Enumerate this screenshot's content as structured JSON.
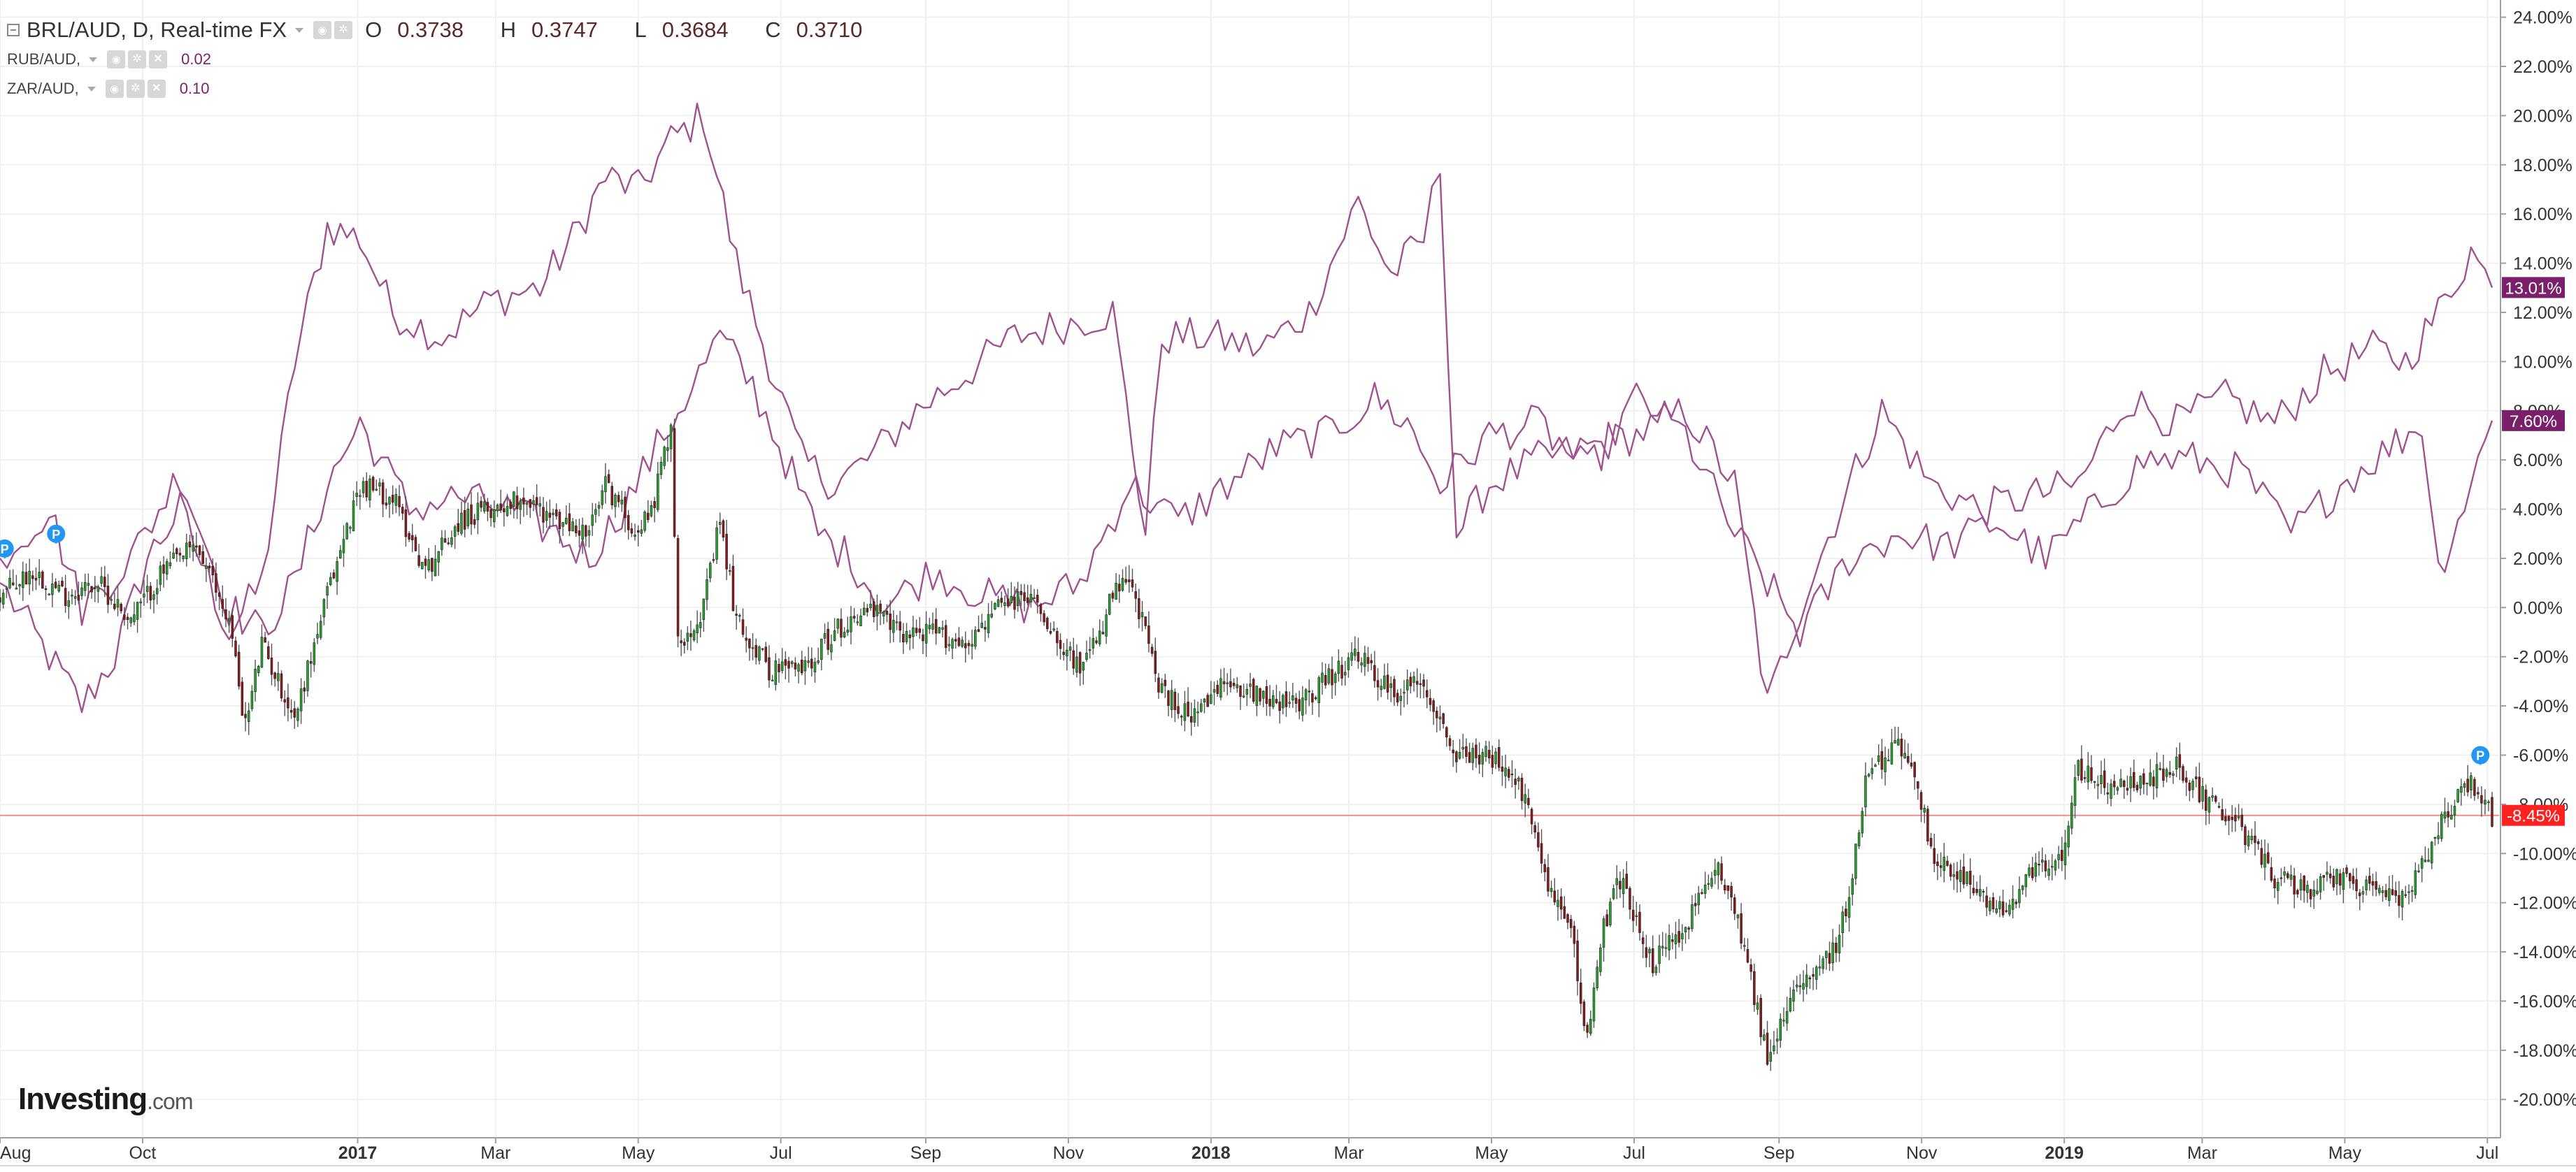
{
  "legend": {
    "main": {
      "symbol": "BRL/AUD, D, Real-time FX",
      "open_label": "O",
      "open": "0.3738",
      "high_label": "H",
      "high": "0.3747",
      "low_label": "L",
      "low": "0.3684",
      "close_label": "C",
      "close": "0.3710"
    },
    "series": [
      {
        "symbol": "RUB/AUD,",
        "value": "0.02"
      },
      {
        "symbol": "ZAR/AUD,",
        "value": "0.10"
      }
    ]
  },
  "logo": {
    "brand": "Investing",
    "domain": ".com"
  },
  "colors": {
    "up_candle": "#26a32e",
    "down_candle": "#8b1a1a",
    "compare_line": "#a0528f",
    "current_line": "#f28b8b",
    "badge_red": "#ff2020",
    "badge_purple": "#7a1f6a",
    "marker_blue": "#2196f3"
  },
  "price_badges": {
    "brl": "-8.45%",
    "rub": "13.01%",
    "zar": "7.60%"
  },
  "markers": [
    {
      "label": "P",
      "date": "2016-08-03",
      "value": 2.0
    },
    {
      "label": "P",
      "date": "2016-08-25",
      "value": 2.6
    },
    {
      "label": "P",
      "date": "2019-06-28",
      "value": -6.4
    }
  ],
  "chart_data": {
    "type": "line",
    "y_unit": "%",
    "ylim": [
      -21.5,
      24.7
    ],
    "xlim": [
      "2016-08-01",
      "2019-07-06"
    ],
    "grid": true,
    "y_ticks": [
      "24.00%",
      "22.00%",
      "20.00%",
      "18.00%",
      "16.00%",
      "14.00%",
      "12.00%",
      "10.00%",
      "8.00%",
      "6.00%",
      "4.00%",
      "2.00%",
      "0.00%",
      "-2.00%",
      "-4.00%",
      "-6.00%",
      "-8.00%",
      "-10.00%",
      "-12.00%",
      "-14.00%",
      "-16.00%",
      "-18.00%",
      "-20.00%"
    ],
    "y_tick_values": [
      24,
      22,
      20,
      18,
      16,
      14,
      12,
      10,
      8,
      6,
      4,
      2,
      0,
      -2,
      -4,
      -6,
      -8,
      -10,
      -12,
      -14,
      -16,
      -18,
      -20
    ],
    "x_ticks": [
      {
        "date": "2016-08-01",
        "label": "Aug",
        "bold": false
      },
      {
        "date": "2016-10-01",
        "label": "Oct",
        "bold": false
      },
      {
        "date": "2017-01-01",
        "label": "2017",
        "bold": true
      },
      {
        "date": "2017-03-01",
        "label": "Mar",
        "bold": false
      },
      {
        "date": "2017-05-01",
        "label": "May",
        "bold": false
      },
      {
        "date": "2017-07-01",
        "label": "Jul",
        "bold": false
      },
      {
        "date": "2017-09-01",
        "label": "Sep",
        "bold": false
      },
      {
        "date": "2017-11-01",
        "label": "Nov",
        "bold": false
      },
      {
        "date": "2018-01-01",
        "label": "2018",
        "bold": true
      },
      {
        "date": "2018-03-01",
        "label": "Mar",
        "bold": false
      },
      {
        "date": "2018-05-01",
        "label": "May",
        "bold": false
      },
      {
        "date": "2018-07-01",
        "label": "Jul",
        "bold": false
      },
      {
        "date": "2018-09-01",
        "label": "Sep",
        "bold": false
      },
      {
        "date": "2018-11-01",
        "label": "Nov",
        "bold": false
      },
      {
        "date": "2019-01-01",
        "label": "2019",
        "bold": true
      },
      {
        "date": "2019-03-01",
        "label": "Mar",
        "bold": false
      },
      {
        "date": "2019-05-01",
        "label": "May",
        "bold": false
      },
      {
        "date": "2019-07-01",
        "label": "Jul",
        "bold": false
      }
    ],
    "current_value": -8.45,
    "series": [
      {
        "name": "BRL/AUD",
        "style": "candlestick",
        "points": [
          [
            "2016-08-01",
            0.5
          ],
          [
            "2016-08-15",
            1.5
          ],
          [
            "2016-08-29",
            0.5
          ],
          [
            "2016-09-12",
            1.0
          ],
          [
            "2016-09-26",
            -0.5
          ],
          [
            "2016-10-10",
            1.5
          ],
          [
            "2016-10-24",
            2.5
          ],
          [
            "2016-11-07",
            -0.5
          ],
          [
            "2016-11-14",
            -4.8
          ],
          [
            "2016-11-21",
            -1.5
          ],
          [
            "2016-12-05",
            -4.5
          ],
          [
            "2016-12-19",
            0.5
          ],
          [
            "2017-01-02",
            5.0
          ],
          [
            "2017-01-16",
            4.5
          ],
          [
            "2017-01-30",
            1.5
          ],
          [
            "2017-02-13",
            3.5
          ],
          [
            "2017-02-27",
            4.0
          ],
          [
            "2017-03-13",
            4.5
          ],
          [
            "2017-03-27",
            3.5
          ],
          [
            "2017-04-10",
            3.0
          ],
          [
            "2017-04-17",
            5.0
          ],
          [
            "2017-05-01",
            3.0
          ],
          [
            "2017-05-08",
            4.5
          ],
          [
            "2017-05-15",
            7.5
          ],
          [
            "2017-05-18",
            -1.5
          ],
          [
            "2017-05-29",
            0.0
          ],
          [
            "2017-06-05",
            3.5
          ],
          [
            "2017-06-12",
            -0.5
          ],
          [
            "2017-06-26",
            -2.5
          ],
          [
            "2017-07-10",
            -2.5
          ],
          [
            "2017-07-24",
            -1.0
          ],
          [
            "2017-08-07",
            0.0
          ],
          [
            "2017-08-21",
            -1.0
          ],
          [
            "2017-09-04",
            -1.0
          ],
          [
            "2017-09-18",
            -1.5
          ],
          [
            "2017-10-02",
            0.0
          ],
          [
            "2017-10-16",
            0.5
          ],
          [
            "2017-10-30",
            -1.5
          ],
          [
            "2017-11-06",
            -2.5
          ],
          [
            "2017-11-13",
            -1.5
          ],
          [
            "2017-11-20",
            0.5
          ],
          [
            "2017-11-27",
            1.0
          ],
          [
            "2017-12-04",
            -1.0
          ],
          [
            "2017-12-11",
            -3.5
          ],
          [
            "2017-12-25",
            -4.5
          ],
          [
            "2018-01-08",
            -3.0
          ],
          [
            "2018-01-22",
            -3.5
          ],
          [
            "2018-02-05",
            -4.0
          ],
          [
            "2018-02-19",
            -3.0
          ],
          [
            "2018-03-05",
            -2.0
          ],
          [
            "2018-03-19",
            -3.5
          ],
          [
            "2018-04-02",
            -3.0
          ],
          [
            "2018-04-16",
            -6.0
          ],
          [
            "2018-04-30",
            -6.0
          ],
          [
            "2018-05-14",
            -7.5
          ],
          [
            "2018-05-28",
            -12.0
          ],
          [
            "2018-06-04",
            -13.0
          ],
          [
            "2018-06-11",
            -17.5
          ],
          [
            "2018-06-18",
            -13.0
          ],
          [
            "2018-06-25",
            -11.0
          ],
          [
            "2018-07-09",
            -14.5
          ],
          [
            "2018-07-23",
            -13.0
          ],
          [
            "2018-08-06",
            -10.5
          ],
          [
            "2018-08-13",
            -12.0
          ],
          [
            "2018-08-20",
            -15.0
          ],
          [
            "2018-08-27",
            -18.5
          ],
          [
            "2018-09-10",
            -15.0
          ],
          [
            "2018-09-24",
            -14.0
          ],
          [
            "2018-10-01",
            -12.0
          ],
          [
            "2018-10-08",
            -7.0
          ],
          [
            "2018-10-22",
            -5.5
          ],
          [
            "2018-10-29",
            -6.5
          ],
          [
            "2018-11-05",
            -10.0
          ],
          [
            "2018-11-19",
            -11.0
          ],
          [
            "2018-12-03",
            -12.5
          ],
          [
            "2018-12-17",
            -11.0
          ],
          [
            "2018-12-31",
            -10.0
          ],
          [
            "2019-01-07",
            -6.5
          ],
          [
            "2019-01-21",
            -7.5
          ],
          [
            "2019-02-04",
            -7.0
          ],
          [
            "2019-02-18",
            -6.5
          ],
          [
            "2019-03-04",
            -8.0
          ],
          [
            "2019-03-18",
            -9.0
          ],
          [
            "2019-04-01",
            -11.0
          ],
          [
            "2019-04-15",
            -11.5
          ],
          [
            "2019-04-29",
            -11.0
          ],
          [
            "2019-05-13",
            -11.5
          ],
          [
            "2019-05-27",
            -12.0
          ],
          [
            "2019-06-10",
            -9.0
          ],
          [
            "2019-06-24",
            -7.0
          ],
          [
            "2019-07-03",
            -8.45
          ]
        ]
      },
      {
        "name": "RUB/AUD",
        "style": "line",
        "points": [
          [
            "2016-08-01",
            1.0
          ],
          [
            "2016-08-22",
            -2.0
          ],
          [
            "2016-09-05",
            -4.0
          ],
          [
            "2016-09-19",
            -2.0
          ],
          [
            "2016-10-03",
            2.0
          ],
          [
            "2016-10-17",
            4.0
          ],
          [
            "2016-11-07",
            -1.0
          ],
          [
            "2016-11-21",
            1.0
          ],
          [
            "2016-12-05",
            10.0
          ],
          [
            "2016-12-19",
            15.5
          ],
          [
            "2017-01-02",
            15.0
          ],
          [
            "2017-01-16",
            12.0
          ],
          [
            "2017-02-06",
            11.0
          ],
          [
            "2017-02-27",
            12.5
          ],
          [
            "2017-03-20",
            13.0
          ],
          [
            "2017-04-03",
            15.0
          ],
          [
            "2017-04-17",
            17.5
          ],
          [
            "2017-05-01",
            17.0
          ],
          [
            "2017-05-15",
            19.0
          ],
          [
            "2017-05-29",
            20.0
          ],
          [
            "2017-06-12",
            14.0
          ],
          [
            "2017-06-26",
            10.0
          ],
          [
            "2017-07-10",
            6.0
          ],
          [
            "2017-07-24",
            5.0
          ],
          [
            "2017-08-07",
            6.0
          ],
          [
            "2017-08-28",
            8.0
          ],
          [
            "2017-09-18",
            9.5
          ],
          [
            "2017-10-09",
            11.0
          ],
          [
            "2017-10-30",
            11.5
          ],
          [
            "2017-11-20",
            12.0
          ],
          [
            "2017-12-04",
            3.0
          ],
          [
            "2017-12-11",
            11.0
          ],
          [
            "2018-01-01",
            11.0
          ],
          [
            "2018-01-22",
            10.5
          ],
          [
            "2018-02-12",
            12.0
          ],
          [
            "2018-03-05",
            16.5
          ],
          [
            "2018-03-19",
            13.5
          ],
          [
            "2018-04-02",
            15.0
          ],
          [
            "2018-04-09",
            18.0
          ],
          [
            "2018-04-16",
            3.0
          ],
          [
            "2018-04-30",
            5.0
          ],
          [
            "2018-05-21",
            6.0
          ],
          [
            "2018-06-11",
            6.5
          ],
          [
            "2018-07-02",
            7.0
          ],
          [
            "2018-07-23",
            8.0
          ],
          [
            "2018-08-13",
            5.0
          ],
          [
            "2018-08-27",
            -4.0
          ],
          [
            "2018-09-10",
            0.0
          ],
          [
            "2018-10-01",
            5.0
          ],
          [
            "2018-10-15",
            8.0
          ],
          [
            "2018-11-05",
            5.0
          ],
          [
            "2018-11-26",
            4.0
          ],
          [
            "2018-12-17",
            4.5
          ],
          [
            "2019-01-07",
            5.0
          ],
          [
            "2019-01-28",
            8.5
          ],
          [
            "2019-02-18",
            7.5
          ],
          [
            "2019-03-11",
            8.5
          ],
          [
            "2019-04-01",
            7.5
          ],
          [
            "2019-04-22",
            9.5
          ],
          [
            "2019-05-13",
            10.5
          ],
          [
            "2019-05-27",
            10.0
          ],
          [
            "2019-06-10",
            12.0
          ],
          [
            "2019-06-24",
            14.5
          ],
          [
            "2019-07-03",
            13.01
          ]
        ]
      },
      {
        "name": "ZAR/AUD",
        "style": "line",
        "points": [
          [
            "2016-08-01",
            2.0
          ],
          [
            "2016-08-22",
            4.0
          ],
          [
            "2016-09-05",
            0.0
          ],
          [
            "2016-09-26",
            2.0
          ],
          [
            "2016-10-17",
            5.5
          ],
          [
            "2016-11-07",
            0.0
          ],
          [
            "2016-11-21",
            -1.0
          ],
          [
            "2016-12-05",
            1.0
          ],
          [
            "2016-12-19",
            5.0
          ],
          [
            "2017-01-02",
            7.5
          ],
          [
            "2017-01-23",
            4.0
          ],
          [
            "2017-02-13",
            4.5
          ],
          [
            "2017-03-06",
            4.0
          ],
          [
            "2017-03-27",
            3.0
          ],
          [
            "2017-04-10",
            2.0
          ],
          [
            "2017-04-24",
            4.0
          ],
          [
            "2017-05-15",
            7.5
          ],
          [
            "2017-06-05",
            11.0
          ],
          [
            "2017-06-19",
            9.0
          ],
          [
            "2017-07-03",
            6.0
          ],
          [
            "2017-07-17",
            3.0
          ],
          [
            "2017-07-31",
            2.0
          ],
          [
            "2017-08-14",
            0.0
          ],
          [
            "2017-09-04",
            1.5
          ],
          [
            "2017-09-25",
            0.5
          ],
          [
            "2017-10-16",
            0.0
          ],
          [
            "2017-11-06",
            1.0
          ],
          [
            "2017-11-27",
            5.0
          ],
          [
            "2017-12-18",
            3.5
          ],
          [
            "2018-01-08",
            5.0
          ],
          [
            "2018-01-29",
            6.5
          ],
          [
            "2018-02-19",
            7.0
          ],
          [
            "2018-03-12",
            8.5
          ],
          [
            "2018-03-26",
            7.5
          ],
          [
            "2018-04-09",
            5.0
          ],
          [
            "2018-04-30",
            7.0
          ],
          [
            "2018-05-21",
            7.5
          ],
          [
            "2018-06-11",
            5.5
          ],
          [
            "2018-07-02",
            8.5
          ],
          [
            "2018-07-23",
            7.0
          ],
          [
            "2018-08-13",
            3.0
          ],
          [
            "2018-08-27",
            1.0
          ],
          [
            "2018-09-10",
            -1.0
          ],
          [
            "2018-10-01",
            2.0
          ],
          [
            "2018-10-22",
            3.0
          ],
          [
            "2018-11-12",
            2.5
          ],
          [
            "2018-12-03",
            3.5
          ],
          [
            "2018-12-24",
            2.0
          ],
          [
            "2019-01-14",
            4.0
          ],
          [
            "2019-02-04",
            6.0
          ],
          [
            "2019-02-25",
            6.0
          ],
          [
            "2019-03-18",
            5.5
          ],
          [
            "2019-04-08",
            3.0
          ],
          [
            "2019-04-29",
            5.0
          ],
          [
            "2019-05-20",
            6.5
          ],
          [
            "2019-06-03",
            7.5
          ],
          [
            "2019-06-10",
            1.5
          ],
          [
            "2019-06-24",
            5.0
          ],
          [
            "2019-07-03",
            7.6
          ]
        ]
      }
    ]
  }
}
